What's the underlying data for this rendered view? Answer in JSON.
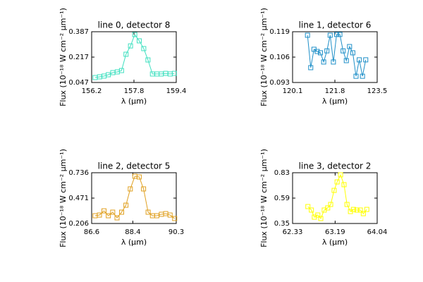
{
  "chart_data": [
    {
      "type": "line",
      "title": "line 0, detector 8",
      "xlabel": "λ (μm)",
      "ylabel": "Flux (10⁻¹⁸ W cm⁻² μm⁻¹)",
      "xlim": [
        156.2,
        159.4
      ],
      "xticks": [
        156.2,
        157.8,
        159.4
      ],
      "ylim": [
        0.047,
        0.387
      ],
      "yticks": [
        0.047,
        0.217,
        0.387
      ],
      "x": [
        156.33,
        156.5,
        156.67,
        156.83,
        157.0,
        157.17,
        157.33,
        157.5,
        157.67,
        157.83,
        158.0,
        158.17,
        158.33,
        158.5,
        158.67,
        158.83,
        159.0,
        159.17,
        159.33
      ],
      "color": "#40e0c0",
      "values": [
        0.08,
        0.085,
        0.09,
        0.099,
        0.113,
        0.118,
        0.127,
        0.236,
        0.292,
        0.368,
        0.326,
        0.274,
        0.198,
        0.104,
        0.104,
        0.104,
        0.108,
        0.104,
        0.108
      ]
    },
    {
      "type": "line",
      "title": "line 1, detector 6",
      "xlabel": "λ (μm)",
      "ylabel": "Flux (10⁻¹⁸ W cm⁻² μm⁻¹)",
      "xlim": [
        120.1,
        123.5
      ],
      "xticks": [
        120.1,
        121.8,
        123.5
      ],
      "ylim": [
        0.093,
        0.119
      ],
      "yticks": [
        0.093,
        0.106,
        0.119
      ],
      "x": [
        120.7,
        120.83,
        120.96,
        121.09,
        121.22,
        121.35,
        121.48,
        121.61,
        121.74,
        121.87,
        122.0,
        122.13,
        122.26,
        122.39,
        122.52,
        122.65,
        122.78,
        122.91,
        123.04
      ],
      "color": "#1e8fc8",
      "values": [
        0.1172,
        0.1006,
        0.11,
        0.1089,
        0.1082,
        0.1035,
        0.1092,
        0.1172,
        0.1035,
        0.1176,
        0.1176,
        0.1092,
        0.1042,
        0.1114,
        0.1082,
        0.0962,
        0.1046,
        0.0962,
        0.1046
      ]
    },
    {
      "type": "line",
      "title": "line 2, detector 5",
      "xlabel": "λ (μm)",
      "ylabel": "Flux (10⁻¹⁸ W cm⁻² μm⁻¹)",
      "xlim": [
        86.6,
        90.3
      ],
      "xticks": [
        86.6,
        88.4,
        90.3
      ],
      "ylim": [
        0.206,
        0.736
      ],
      "yticks": [
        0.206,
        0.471,
        0.736
      ],
      "x": [
        86.75,
        86.94,
        87.14,
        87.33,
        87.52,
        87.71,
        87.91,
        88.1,
        88.29,
        88.49,
        88.68,
        88.87,
        89.07,
        89.26,
        89.45,
        89.65,
        89.84,
        90.03,
        90.23
      ],
      "color": "#e0a020",
      "values": [
        0.287,
        0.294,
        0.338,
        0.287,
        0.324,
        0.265,
        0.324,
        0.397,
        0.567,
        0.699,
        0.692,
        0.567,
        0.324,
        0.287,
        0.287,
        0.302,
        0.309,
        0.294,
        0.258
      ]
    },
    {
      "type": "line",
      "title": "line 3, detector 2",
      "xlabel": "λ (μm)",
      "ylabel": "Flux (10⁻¹⁸ W cm⁻² μm⁻¹)",
      "xlim": [
        62.33,
        64.04
      ],
      "xticks": [
        62.33,
        63.19,
        64.04
      ],
      "ylim": [
        0.35,
        0.83
      ],
      "yticks": [
        0.35,
        0.59,
        0.83
      ],
      "x": [
        62.64,
        62.71,
        62.77,
        62.84,
        62.9,
        62.97,
        63.04,
        63.1,
        63.17,
        63.23,
        63.3,
        63.37,
        63.43,
        63.5,
        63.56,
        63.63,
        63.7,
        63.76,
        63.83
      ],
      "color": "#ffff00",
      "values": [
        0.51,
        0.477,
        0.41,
        0.43,
        0.397,
        0.477,
        0.497,
        0.53,
        0.663,
        0.743,
        0.81,
        0.717,
        0.53,
        0.463,
        0.483,
        0.477,
        0.477,
        0.443,
        0.483
      ]
    }
  ]
}
